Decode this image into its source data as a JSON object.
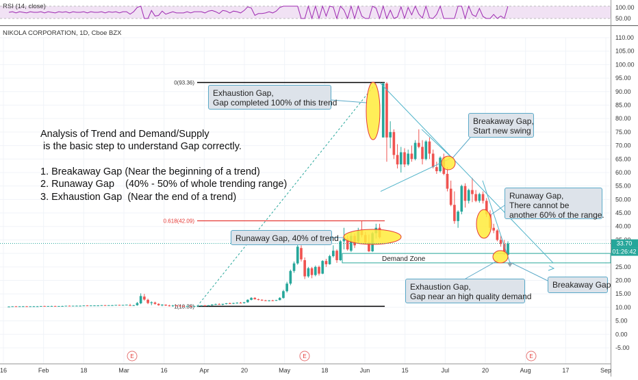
{
  "rsi": {
    "label": "RSI (14, close)",
    "ticks": [
      "100.00",
      "50.00"
    ]
  },
  "symbol_label": "NIKOLA CORPORATION, 1D, Cboe BZX",
  "analysis": {
    "line1": "Analysis of Trend and Demand/Supply",
    "line2": " is the basic step to understand Gap correctly.",
    "line3": "1. Breakaway Gap (Near the beginning of a trend)",
    "line4": "2. Runaway Gap    (40% - 50% of whole trending range)",
    "line5": "3. Exhaustion Gap  (Near the end of a trend)"
  },
  "callouts": {
    "exhaustion_top": "Exhaustion Gap,\nGap completed 100% of this trend",
    "breakaway_swing": "Breakaway Gap,\nStart new swing",
    "runaway_60": "Runaway Gap,\nThere cannot be\nanother 60% of the range.",
    "runaway_40": "Runaway Gap, 40% of trend",
    "exhaustion_demand": "Exhaustion Gap,\nGap near an high quality demand",
    "breakaway_bottom": "Breakaway Gap"
  },
  "demand_zone_label": "Demand Zone",
  "fib": {
    "level_0": "0(93.36)",
    "level_0618": "0.618(42.09)",
    "level_1": "1(10.39)"
  },
  "price_tag": "33.70",
  "timer_tag": "01:26:42",
  "earnings_marker": "E",
  "colors": {
    "up": "#26a69a",
    "down": "#ef5350",
    "fib_0618": "#e53935",
    "highlight_fill": "#ffeb3b",
    "highlight_stroke": "#e53935",
    "trendline": "#4fb3c9",
    "dashed_line": "#26a69a",
    "rsi_line": "#9c27b0",
    "rsi_band": "#e1bee7"
  },
  "chart_data": {
    "type": "candlestick",
    "y_axis": {
      "ticks": [
        "-5.00",
        "0.00",
        "5.00",
        "10.00",
        "15.00",
        "20.00",
        "25.00",
        "30.00",
        "35.00",
        "40.00",
        "45.00",
        "50.00",
        "55.00",
        "60.00",
        "65.00",
        "70.00",
        "75.00",
        "80.00",
        "85.00",
        "90.00",
        "95.00",
        "100.00",
        "105.00",
        "110.00"
      ],
      "ylim": [
        -5,
        110
      ],
      "position": "right"
    },
    "x_axis": {
      "ticks": [
        "16",
        "Feb",
        "18",
        "Mar",
        "16",
        "Apr",
        "20",
        "May",
        "18",
        "Jun",
        "15",
        "Jul",
        "20",
        "Aug",
        "17",
        "Sep"
      ]
    },
    "fib_levels": [
      {
        "label": "0(93.36)",
        "value": 93.36
      },
      {
        "label": "0.618(42.09)",
        "value": 42.09
      },
      {
        "label": "1(10.39)",
        "value": 10.39
      }
    ],
    "demand_zone": {
      "low": 26.5,
      "high": 30.0
    },
    "last_price": 33.7,
    "candles": [
      [
        10.3,
        10.4,
        10.2,
        10.3
      ],
      [
        10.3,
        10.4,
        10.2,
        10.4
      ],
      [
        10.4,
        10.5,
        10.3,
        10.3
      ],
      [
        10.3,
        10.4,
        10.2,
        10.4
      ],
      [
        10.4,
        10.5,
        10.3,
        10.4
      ],
      [
        10.4,
        10.5,
        10.3,
        10.3
      ],
      [
        10.3,
        10.4,
        10.2,
        10.4
      ],
      [
        10.4,
        10.5,
        10.3,
        10.4
      ],
      [
        10.4,
        10.5,
        10.3,
        10.4
      ],
      [
        10.4,
        10.5,
        10.3,
        10.5
      ],
      [
        10.5,
        10.6,
        10.4,
        10.4
      ],
      [
        10.4,
        10.5,
        10.3,
        10.5
      ],
      [
        10.5,
        10.6,
        10.4,
        10.5
      ],
      [
        10.5,
        10.6,
        10.4,
        10.4
      ],
      [
        10.4,
        10.5,
        10.3,
        10.5
      ],
      [
        10.5,
        10.6,
        10.4,
        10.5
      ],
      [
        10.5,
        10.6,
        10.4,
        10.6
      ],
      [
        10.6,
        10.7,
        10.5,
        10.5
      ],
      [
        10.5,
        10.6,
        10.4,
        10.6
      ],
      [
        10.6,
        10.7,
        10.5,
        10.6
      ],
      [
        10.6,
        10.7,
        10.5,
        10.6
      ],
      [
        10.6,
        10.7,
        10.5,
        10.7
      ],
      [
        10.7,
        10.8,
        10.6,
        10.6
      ],
      [
        10.6,
        10.7,
        10.5,
        10.7
      ],
      [
        10.7,
        10.8,
        10.6,
        10.7
      ],
      [
        10.7,
        10.8,
        10.6,
        10.7
      ],
      [
        10.7,
        10.8,
        10.6,
        10.8
      ],
      [
        10.8,
        10.9,
        10.7,
        10.7
      ],
      [
        10.7,
        10.8,
        10.6,
        10.8
      ],
      [
        10.8,
        10.9,
        10.7,
        10.8
      ],
      [
        10.8,
        10.9,
        10.7,
        10.9
      ],
      [
        10.9,
        11.0,
        10.8,
        10.8
      ],
      [
        10.8,
        10.9,
        10.7,
        10.9
      ],
      [
        10.9,
        11.0,
        10.8,
        11.0
      ],
      [
        10.8,
        11.3,
        10.6,
        10.7
      ],
      [
        10.7,
        10.9,
        10.5,
        10.8
      ],
      [
        10.8,
        12.0,
        10.6,
        11.6
      ],
      [
        11.5,
        15.2,
        11.2,
        14.2
      ],
      [
        14.0,
        15.0,
        12.5,
        12.9
      ],
      [
        12.8,
        13.2,
        11.2,
        11.6
      ],
      [
        11.6,
        12.2,
        10.8,
        11.9
      ],
      [
        11.8,
        12.1,
        11.0,
        11.3
      ],
      [
        11.3,
        11.5,
        10.6,
        10.8
      ],
      [
        10.8,
        11.2,
        10.4,
        11.0
      ],
      [
        11.0,
        11.1,
        10.5,
        10.7
      ],
      [
        10.7,
        11.0,
        10.3,
        10.6
      ],
      [
        10.6,
        10.9,
        10.2,
        10.7
      ],
      [
        10.7,
        10.9,
        10.4,
        10.6
      ],
      [
        10.6,
        10.8,
        10.3,
        10.5
      ],
      [
        10.5,
        10.7,
        10.2,
        10.4
      ],
      [
        10.4,
        10.6,
        10.2,
        10.5
      ],
      [
        10.5,
        10.7,
        10.3,
        10.4
      ],
      [
        10.4,
        10.6,
        10.2,
        10.5
      ],
      [
        10.5,
        10.7,
        10.3,
        10.6
      ],
      [
        10.6,
        10.8,
        10.4,
        10.7
      ],
      [
        10.7,
        10.9,
        10.5,
        10.6
      ],
      [
        10.6,
        10.8,
        10.4,
        10.8
      ],
      [
        10.8,
        11.0,
        10.6,
        11.1
      ],
      [
        11.1,
        11.4,
        10.9,
        11.2
      ],
      [
        11.2,
        11.5,
        11.0,
        11.0
      ],
      [
        11.0,
        11.3,
        10.8,
        11.3
      ],
      [
        11.3,
        11.6,
        11.1,
        11.5
      ],
      [
        11.5,
        11.8,
        11.3,
        11.4
      ],
      [
        11.4,
        11.7,
        11.2,
        11.6
      ],
      [
        11.6,
        11.9,
        11.4,
        11.7
      ],
      [
        11.7,
        12.0,
        11.5,
        11.6
      ],
      [
        11.6,
        12.0,
        11.4,
        11.9
      ],
      [
        11.9,
        13.0,
        11.7,
        12.8
      ],
      [
        12.8,
        13.8,
        12.6,
        13.5
      ],
      [
        13.5,
        13.8,
        12.9,
        13.0
      ],
      [
        13.0,
        13.2,
        12.6,
        12.8
      ],
      [
        12.8,
        13.0,
        12.4,
        12.6
      ],
      [
        12.6,
        12.8,
        12.3,
        12.5
      ],
      [
        12.5,
        12.7,
        12.2,
        12.6
      ],
      [
        12.6,
        12.8,
        12.3,
        12.5
      ],
      [
        12.5,
        12.8,
        12.4,
        12.7
      ],
      [
        12.7,
        13.8,
        12.6,
        13.5
      ],
      [
        13.5,
        16.5,
        13.2,
        16.0
      ],
      [
        16.0,
        19.5,
        15.5,
        18.8
      ],
      [
        18.8,
        24.0,
        18.2,
        23.5
      ],
      [
        23.5,
        27.0,
        22.8,
        26.3
      ],
      [
        26.3,
        35.5,
        25.8,
        32.5
      ],
      [
        32.0,
        33.0,
        27.0,
        27.8
      ],
      [
        27.5,
        28.5,
        20.5,
        21.5
      ],
      [
        21.5,
        25.0,
        21.0,
        24.5
      ],
      [
        24.5,
        25.0,
        20.8,
        22.0
      ],
      [
        22.0,
        25.5,
        21.5,
        25.0
      ],
      [
        25.0,
        25.5,
        21.8,
        22.5
      ],
      [
        22.5,
        27.5,
        22.3,
        27.2
      ],
      [
        27.2,
        28.0,
        25.0,
        26.0
      ],
      [
        26.0,
        29.5,
        25.8,
        29.0
      ],
      [
        29.0,
        33.0,
        28.5,
        31.0
      ],
      [
        31.0,
        31.5,
        26.5,
        27.5
      ],
      [
        27.5,
        35.0,
        27.2,
        34.5
      ],
      [
        34.5,
        39.5,
        31.5,
        35.5
      ],
      [
        35.5,
        36.5,
        31.0,
        31.5
      ],
      [
        31.0,
        38.0,
        30.5,
        36.5
      ],
      [
        36.5,
        37.5,
        32.0,
        33.0
      ],
      [
        34.5,
        39.5,
        33.8,
        38.5
      ],
      [
        38.5,
        42.0,
        36.0,
        36.8
      ],
      [
        36.8,
        38.0,
        33.5,
        34.0
      ],
      [
        34.0,
        37.0,
        30.5,
        30.8
      ],
      [
        30.8,
        38.0,
        30.5,
        37.5
      ],
      [
        37.5,
        41.0,
        35.5,
        39.5
      ],
      [
        39.5,
        41.0,
        35.5,
        36.0
      ],
      [
        73.0,
        93.4,
        73.0,
        93.0
      ],
      [
        93.0,
        93.5,
        64.0,
        73.0
      ],
      [
        73.0,
        79.0,
        69.0,
        75.0
      ],
      [
        75.0,
        76.0,
        65.0,
        66.5
      ],
      [
        66.5,
        70.5,
        61.5,
        63.0
      ],
      [
        63.0,
        69.5,
        60.0,
        67.5
      ],
      [
        67.5,
        69.0,
        62.0,
        63.0
      ],
      [
        63.0,
        68.5,
        62.5,
        67.0
      ],
      [
        67.0,
        70.0,
        64.0,
        65.0
      ],
      [
        65.0,
        72.0,
        64.5,
        71.0
      ],
      [
        71.0,
        76.0,
        69.0,
        69.5
      ],
      [
        69.5,
        72.0,
        63.0,
        65.0
      ],
      [
        65.0,
        72.0,
        64.5,
        71.5
      ],
      [
        71.5,
        73.0,
        65.0,
        67.0
      ],
      [
        67.0,
        68.5,
        61.5,
        62.0
      ],
      [
        62.0,
        64.0,
        59.5,
        60.5
      ],
      [
        60.5,
        66.0,
        60.0,
        65.5
      ],
      [
        65.5,
        67.0,
        59.0,
        59.5
      ],
      [
        59.5,
        62.0,
        53.0,
        54.0
      ],
      [
        54.0,
        57.0,
        47.5,
        48.0
      ],
      [
        48.0,
        53.0,
        41.0,
        42.0
      ],
      [
        42.0,
        46.0,
        39.5,
        45.5
      ],
      [
        45.5,
        55.5,
        44.5,
        55.0
      ],
      [
        55.0,
        56.0,
        47.0,
        49.5
      ],
      [
        49.5,
        54.0,
        48.5,
        53.5
      ],
      [
        53.5,
        58.0,
        49.0,
        52.0
      ],
      [
        52.0,
        53.5,
        49.0,
        49.5
      ],
      [
        49.5,
        52.5,
        48.8,
        52.0
      ],
      [
        52.0,
        53.0,
        48.5,
        49.5
      ],
      [
        49.5,
        50.5,
        43.5,
        44.5
      ],
      [
        44.5,
        46.0,
        38.5,
        39.5
      ],
      [
        39.5,
        41.0,
        37.5,
        38.5
      ],
      [
        38.5,
        39.0,
        34.5,
        35.0
      ],
      [
        35.0,
        36.5,
        32.5,
        33.5
      ],
      [
        33.5,
        35.0,
        29.5,
        30.5
      ],
      [
        29.5,
        34.5,
        28.5,
        33.7
      ]
    ]
  }
}
